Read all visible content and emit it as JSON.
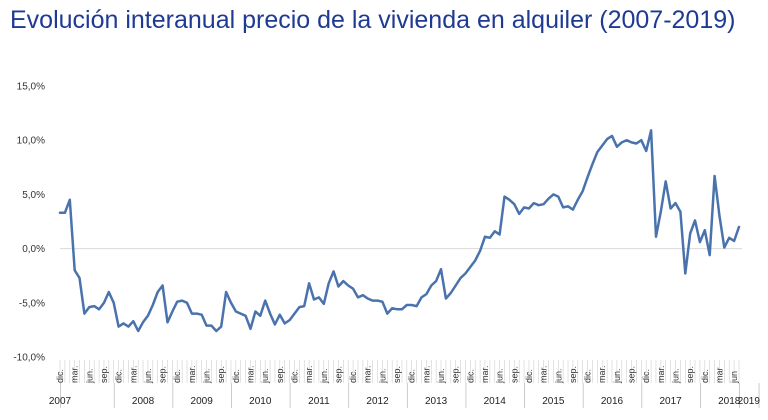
{
  "chart_data": {
    "type": "line",
    "title": "Evolución interanual precio de la vivienda en alquiler (2007-2019)",
    "xlabel": "",
    "ylabel": "",
    "ylim": [
      -10,
      15
    ],
    "yticks": [
      "15,0%",
      "10,0%",
      "5,0%",
      "0,0%",
      "-5,0%",
      "-10,0%"
    ],
    "year_labels": [
      "2007",
      "2008",
      "2009",
      "2010",
      "2011",
      "2012",
      "2013",
      "2014",
      "2015",
      "2016",
      "2017",
      "2018",
      "2019"
    ],
    "month_labels": [
      "dic.",
      "mar.",
      "jun.",
      "sep.",
      "dic.",
      "mar.",
      "jun.",
      "sep.",
      "dic.",
      "mar.",
      "jun.",
      "sep.",
      "dic.",
      "mar.",
      "jun.",
      "sep.",
      "dic.",
      "mar.",
      "jun.",
      "sep.",
      "dic.",
      "mar.",
      "jun.",
      "sep.",
      "dic.",
      "mar.",
      "jun.",
      "sep.",
      "dic.",
      "mar.",
      "jun.",
      "sep.",
      "dic.",
      "mar.",
      "jun.",
      "sep.",
      "dic.",
      "mar.",
      "jun.",
      "sep.",
      "dic.",
      "mar.",
      "jun.",
      "sep.",
      "dic.",
      "mar",
      "jun"
    ],
    "grid": false,
    "color": "#4a73ad",
    "series": [
      {
        "values": [
          3.3,
          3.3,
          4.5,
          -2.0,
          -2.7,
          -6.0,
          -5.4,
          -5.3,
          -5.6,
          -5.0,
          -4.0,
          -5.0,
          -7.2,
          -6.9,
          -7.2,
          -6.7,
          -7.6,
          -6.8,
          -6.2,
          -5.2,
          -4.0,
          -3.4,
          -6.8,
          -5.8,
          -4.9,
          -4.8,
          -5.0,
          -6.0,
          -6.0,
          -6.1,
          -7.1,
          -7.1,
          -7.6,
          -7.2,
          -4.0,
          -5.0,
          -5.8,
          -6.0,
          -6.2,
          -7.4,
          -5.8,
          -6.2,
          -4.8,
          -6.0,
          -7.0,
          -6.1,
          -6.9,
          -6.6,
          -6.0,
          -5.4,
          -5.3,
          -3.2,
          -4.7,
          -4.5,
          -5.1,
          -3.2,
          -2.1,
          -3.5,
          -3.0,
          -3.4,
          -3.7,
          -4.5,
          -4.3,
          -4.6,
          -4.8,
          -4.8,
          -4.9,
          -6.0,
          -5.5,
          -5.6,
          -5.6,
          -5.2,
          -5.2,
          -5.3,
          -4.5,
          -4.2,
          -3.4,
          -3.0,
          -1.9,
          -4.6,
          -4.1,
          -3.4,
          -2.7,
          -2.3,
          -1.7,
          -1.1,
          -0.2,
          1.1,
          1.0,
          1.6,
          1.3,
          4.8,
          4.5,
          4.1,
          3.2,
          3.8,
          3.7,
          4.2,
          4.0,
          4.1,
          4.6,
          5.0,
          4.8,
          3.8,
          3.9,
          3.6,
          4.5,
          5.3,
          6.6,
          7.8,
          8.9,
          9.5,
          10.1,
          10.4,
          9.4,
          9.8,
          10.0,
          9.8,
          9.7,
          10.0,
          9.0,
          10.9,
          1.1,
          3.4,
          6.2,
          3.7,
          4.2,
          3.4,
          -2.3,
          1.4,
          2.6,
          0.6,
          1.7,
          -0.6,
          6.7,
          3.0,
          0.1,
          1.0,
          0.7,
          2.0
        ]
      }
    ]
  }
}
